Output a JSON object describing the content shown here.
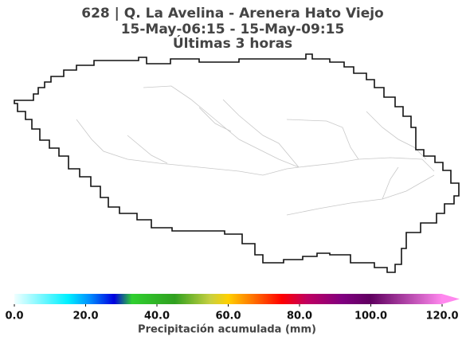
{
  "map": {
    "title": [
      "628 | Q. La Avelina - Arenera Hato Viejo",
      "15-May-06:15 - 15-May-09:15",
      "Últimas 3 horas"
    ],
    "colorbar": {
      "label": "Precipitación acumulada (mm)",
      "range": [
        0,
        120
      ],
      "extend": "max",
      "ticks": [
        {
          "value": 0,
          "label": "0.0"
        },
        {
          "value": 20,
          "label": "20.0"
        },
        {
          "value": 40,
          "label": "40.0"
        },
        {
          "value": 60,
          "label": "60.0"
        },
        {
          "value": 80,
          "label": "80.0"
        },
        {
          "value": 100,
          "label": "100.0"
        },
        {
          "value": 120,
          "label": "120.0"
        }
      ],
      "colormap": [
        {
          "value": 0,
          "color": "#f0ffff"
        },
        {
          "value": 15,
          "color": "#00f0ff"
        },
        {
          "value": 21,
          "color": "#0090ff"
        },
        {
          "value": 28,
          "color": "#0000e0"
        },
        {
          "value": 33,
          "color": "#30d030"
        },
        {
          "value": 45,
          "color": "#30a020"
        },
        {
          "value": 55,
          "color": "#c8d040"
        },
        {
          "value": 60,
          "color": "#ffd000"
        },
        {
          "value": 66,
          "color": "#ff8000"
        },
        {
          "value": 75,
          "color": "#ff0000"
        },
        {
          "value": 82,
          "color": "#c00060"
        },
        {
          "value": 92,
          "color": "#800080"
        },
        {
          "value": 100,
          "color": "#600060"
        },
        {
          "value": 120,
          "color": "#ff88ee"
        }
      ]
    }
  }
}
